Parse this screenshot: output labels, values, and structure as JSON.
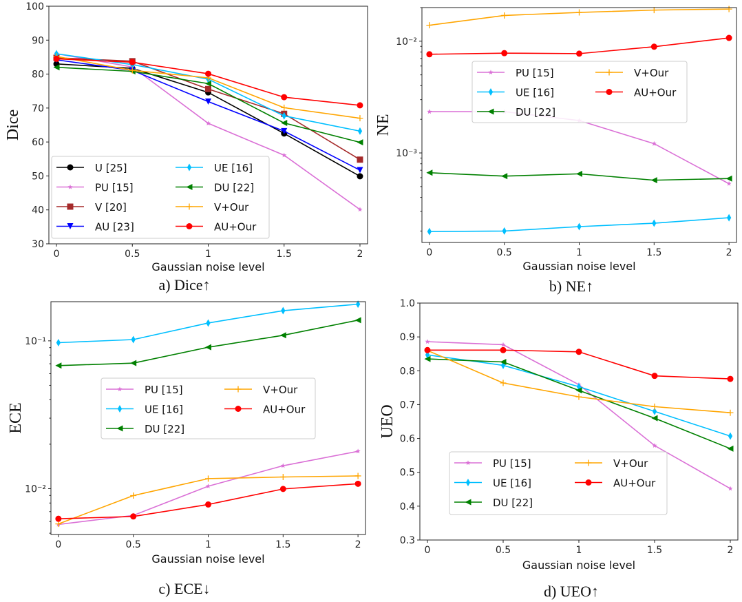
{
  "series_styles": {
    "U [25]": {
      "color": "#000000",
      "marker": "circle"
    },
    "PU [15]": {
      "color": "#da70d6",
      "marker": "star"
    },
    "V [20]": {
      "color": "#a52a2a",
      "marker": "square"
    },
    "AU [23]": {
      "color": "#0000ff",
      "marker": "triangle-down"
    },
    "UE [16]": {
      "color": "#00bfff",
      "marker": "diamond"
    },
    "DU [22]": {
      "color": "#008000",
      "marker": "triangle-left"
    },
    "V+Our": {
      "color": "#ffa500",
      "marker": "plus"
    },
    "AU+Our": {
      "color": "#ff0000",
      "marker": "circle"
    }
  },
  "chart_data": [
    {
      "type": "line",
      "caption": "a) Dice↑",
      "xlabel": "Gaussian noise level",
      "ylabel": "Dice",
      "x": [
        0,
        0.5,
        1,
        1.5,
        2
      ],
      "xticks": [
        "0",
        "0.5",
        "1",
        "1.5",
        "2"
      ],
      "xlim": [
        -0.05,
        2.05
      ],
      "yscale": "linear",
      "ylim": [
        30,
        100
      ],
      "yticks": [
        30,
        40,
        50,
        60,
        70,
        80,
        90,
        100
      ],
      "ytick_labels": [
        "30",
        "40",
        "50",
        "60",
        "70",
        "80",
        "90",
        "100"
      ],
      "grid": false,
      "legend": {
        "placement": "lower-left",
        "columns": [
          [
            "U [25]",
            "PU [15]",
            "V [20]",
            "AU [23]"
          ],
          [
            "UE [16]",
            "DU [22]",
            "V+Our",
            "AU+Our"
          ]
        ]
      },
      "series": [
        {
          "name": "U [25]",
          "values": [
            83.0,
            81.7,
            74.6,
            62.5,
            49.9
          ]
        },
        {
          "name": "PU [15]",
          "values": [
            86.0,
            82.1,
            65.5,
            56.1,
            40.1
          ]
        },
        {
          "name": "V [20]",
          "values": [
            84.8,
            83.8,
            75.6,
            68.3,
            54.8
          ]
        },
        {
          "name": "AU [23]",
          "values": [
            84.2,
            81.1,
            71.9,
            63.2,
            51.7
          ]
        },
        {
          "name": "UE [16]",
          "values": [
            86.0,
            82.8,
            78.5,
            67.7,
            63.2
          ]
        },
        {
          "name": "DU [22]",
          "values": [
            82.0,
            80.8,
            77.2,
            65.6,
            59.9
          ]
        },
        {
          "name": "V+Our",
          "values": [
            85.2,
            81.1,
            78.9,
            70.1,
            67.0
          ]
        },
        {
          "name": "AU+Our",
          "values": [
            84.5,
            83.5,
            80.1,
            73.2,
            70.8
          ]
        }
      ]
    },
    {
      "type": "line",
      "caption": "b) NE↑",
      "xlabel": "Gaussian noise level",
      "ylabel": "NE",
      "x": [
        0,
        0.5,
        1,
        1.5,
        2
      ],
      "xticks": [
        "0",
        "0.5",
        "1",
        "1.5",
        "2"
      ],
      "xlim": [
        -0.05,
        2.05
      ],
      "yscale": "log",
      "ylim": [
        0.000158,
        0.02
      ],
      "yticks": [
        0.001,
        0.01
      ],
      "ytick_labels": [
        "10⁻³",
        "10⁻²"
      ],
      "grid": false,
      "legend": {
        "placement": "center",
        "columns": [
          [
            "PU [15]",
            "UE [16]",
            "DU [22]"
          ],
          [
            "V+Our",
            "AU+Our"
          ]
        ]
      },
      "series": [
        {
          "name": "PU [15]",
          "values": [
            0.00234,
            0.00234,
            0.00195,
            0.00121,
            0.00053
          ]
        },
        {
          "name": "UE [16]",
          "values": [
            0.000198,
            0.0002,
            0.000219,
            0.000235,
            0.000263
          ]
        },
        {
          "name": "DU [22]",
          "values": [
            0.000665,
            0.00062,
            0.00065,
            0.00057,
            0.00059
          ]
        },
        {
          "name": "V+Our",
          "values": [
            0.0139,
            0.017,
            0.0181,
            0.019,
            0.0194
          ]
        },
        {
          "name": "AU+Our",
          "values": [
            0.00764,
            0.00782,
            0.00774,
            0.00893,
            0.0107
          ]
        }
      ]
    },
    {
      "type": "line",
      "caption": "c) ECE↓",
      "xlabel": "Gaussian noise level",
      "ylabel": "ECE",
      "x": [
        0,
        0.5,
        1,
        1.5,
        2
      ],
      "xticks": [
        "0",
        "0.5",
        "1",
        "1.5",
        "2"
      ],
      "xlim": [
        -0.05,
        2.05
      ],
      "yscale": "log",
      "ylim": [
        0.0049,
        0.184
      ],
      "yticks": [
        0.01,
        0.1
      ],
      "ytick_labels": [
        "10⁻²",
        "10⁻¹"
      ],
      "grid": false,
      "legend": {
        "placement": "center",
        "columns": [
          [
            "PU [15]",
            "UE [16]",
            "DU [22]"
          ],
          [
            "V+Our",
            "AU+Our"
          ]
        ]
      },
      "series": [
        {
          "name": "PU [15]",
          "values": [
            0.00573,
            0.0066,
            0.0104,
            0.0143,
            0.0179
          ]
        },
        {
          "name": "UE [16]",
          "values": [
            0.0972,
            0.102,
            0.132,
            0.16,
            0.177
          ]
        },
        {
          "name": "DU [22]",
          "values": [
            0.068,
            0.0707,
            0.0905,
            0.109,
            0.138
          ]
        },
        {
          "name": "V+Our",
          "values": [
            0.00578,
            0.00898,
            0.0117,
            0.012,
            0.0122
          ]
        },
        {
          "name": "AU+Our",
          "values": [
            0.00626,
            0.00649,
            0.00782,
            0.00996,
            0.0108
          ]
        }
      ]
    },
    {
      "type": "line",
      "caption": "d) UEO↑",
      "xlabel": "Gaussian noise level",
      "ylabel": "UEO",
      "x": [
        0,
        0.5,
        1,
        1.5,
        2
      ],
      "xticks": [
        "0",
        "0.5",
        "1",
        "1.5",
        "2"
      ],
      "xlim": [
        -0.05,
        2.05
      ],
      "yscale": "linear",
      "ylim": [
        0.3,
        1.0
      ],
      "yticks": [
        0.3,
        0.4,
        0.5,
        0.6,
        0.7,
        0.8,
        0.9,
        1.0
      ],
      "ytick_labels": [
        "0.3",
        "0.4",
        "0.5",
        "0.6",
        "0.7",
        "0.8",
        "0.9",
        "1.0"
      ],
      "grid": false,
      "legend": {
        "placement": "lower-left",
        "columns": [
          [
            "PU [15]",
            "UE [16]",
            "DU [22]"
          ],
          [
            "V+Our",
            "AU+Our"
          ]
        ]
      },
      "series": [
        {
          "name": "PU [15]",
          "values": [
            0.886,
            0.877,
            0.759,
            0.579,
            0.452
          ]
        },
        {
          "name": "UE [16]",
          "values": [
            0.847,
            0.816,
            0.753,
            0.68,
            0.607
          ]
        },
        {
          "name": "DU [22]",
          "values": [
            0.835,
            0.826,
            0.742,
            0.66,
            0.57
          ]
        },
        {
          "name": "V+Our",
          "values": [
            0.86,
            0.764,
            0.723,
            0.694,
            0.676
          ]
        },
        {
          "name": "AU+Our",
          "values": [
            0.861,
            0.861,
            0.856,
            0.785,
            0.776
          ]
        }
      ]
    }
  ]
}
